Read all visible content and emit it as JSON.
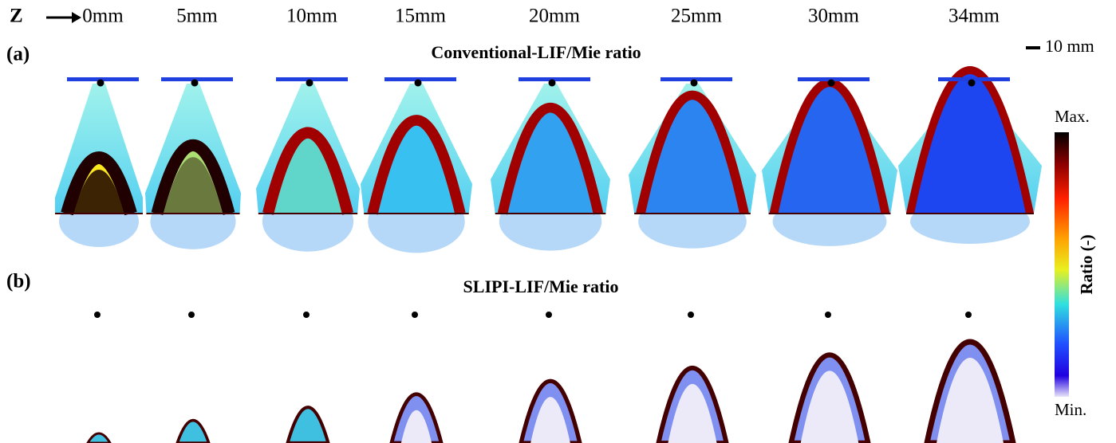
{
  "axis_label": "Z",
  "positions": [
    "0mm",
    "5mm",
    "10mm",
    "15mm",
    "20mm",
    "25mm",
    "30mm",
    "34mm"
  ],
  "scale_bar": "10 mm",
  "panels": [
    {
      "label": "(a)",
      "title": "Conventional-LIF/Mie ratio"
    },
    {
      "label": "(b)",
      "title": "SLIPI-LIF/Mie ratio"
    }
  ],
  "colorbar": {
    "max": "Max.",
    "min": "Min.",
    "title": "Ratio (-)"
  }
}
